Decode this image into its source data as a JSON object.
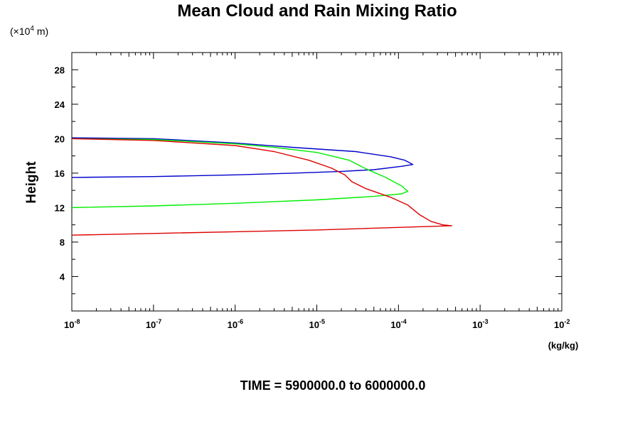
{
  "chart_data": {
    "type": "line",
    "title": "Mean Cloud and Rain Mixing Ratio",
    "ylabel": "Height",
    "yunit": "(×10",
    "yunit_exp": "4",
    "yunit_tail": " m)",
    "xunit": "(kg/kg)",
    "footer": "TIME = 5900000.0 to 6000000.0",
    "x_scale": "log",
    "xlim": [
      1e-08,
      0.01
    ],
    "ylim": [
      0,
      30
    ],
    "x_ticks": [
      {
        "base": "10",
        "exp": "-8",
        "value": -8
      },
      {
        "base": "10",
        "exp": "-7",
        "value": -7
      },
      {
        "base": "10",
        "exp": "-6",
        "value": -6
      },
      {
        "base": "10",
        "exp": "-5",
        "value": -5
      },
      {
        "base": "10",
        "exp": "-4",
        "value": -4
      },
      {
        "base": "10",
        "exp": "-3",
        "value": -3
      },
      {
        "base": "10",
        "exp": "-2",
        "value": -2
      }
    ],
    "y_ticks": [
      "4",
      "8",
      "12",
      "16",
      "20",
      "24",
      "28"
    ],
    "series": [
      {
        "color": "#0000cc",
        "points": [
          [
            1e-08,
            20.1
          ],
          [
            1e-07,
            20.0
          ],
          [
            1e-06,
            19.5
          ],
          [
            5e-06,
            19.0
          ],
          [
            3e-05,
            18.5
          ],
          [
            8e-05,
            17.9
          ],
          [
            0.00012,
            17.5
          ],
          [
            0.00015,
            17.0
          ],
          [
            0.00011,
            16.8
          ],
          [
            5e-05,
            16.4
          ],
          [
            2e-05,
            16.2
          ],
          [
            5e-06,
            16.0
          ],
          [
            1e-06,
            15.8
          ],
          [
            1e-07,
            15.6
          ],
          [
            1e-08,
            15.5
          ]
        ]
      },
      {
        "color": "#00ee00",
        "points": [
          [
            1e-08,
            20.0
          ],
          [
            1e-07,
            19.9
          ],
          [
            1e-06,
            19.4
          ],
          [
            3e-06,
            19.0
          ],
          [
            1e-05,
            18.4
          ],
          [
            2.5e-05,
            17.5
          ],
          [
            4e-05,
            16.5
          ],
          [
            7e-05,
            15.5
          ],
          [
            0.00011,
            14.5
          ],
          [
            0.00013,
            13.9
          ],
          [
            0.00011,
            13.6
          ],
          [
            5e-05,
            13.3
          ],
          [
            1e-05,
            12.9
          ],
          [
            1e-06,
            12.5
          ],
          [
            1e-07,
            12.2
          ],
          [
            1e-08,
            12.0
          ]
        ]
      },
      {
        "color": "#dd0000",
        "points": [
          [
            1e-08,
            20.0
          ],
          [
            1e-07,
            19.8
          ],
          [
            1e-06,
            19.2
          ],
          [
            3e-06,
            18.5
          ],
          [
            8e-06,
            17.5
          ],
          [
            1.5e-05,
            16.6
          ],
          [
            2.2e-05,
            15.8
          ],
          [
            2.7e-05,
            15.0
          ],
          [
            4e-05,
            14.2
          ],
          [
            8e-05,
            13.2
          ],
          [
            0.00013,
            12.3
          ],
          [
            0.00018,
            11.2
          ],
          [
            0.00025,
            10.4
          ],
          [
            0.00035,
            10.0
          ],
          [
            0.00045,
            9.9
          ],
          [
            0.0001,
            9.7
          ],
          [
            1e-05,
            9.4
          ],
          [
            1e-06,
            9.2
          ],
          [
            1e-07,
            9.0
          ],
          [
            1e-08,
            8.8
          ]
        ]
      }
    ]
  }
}
